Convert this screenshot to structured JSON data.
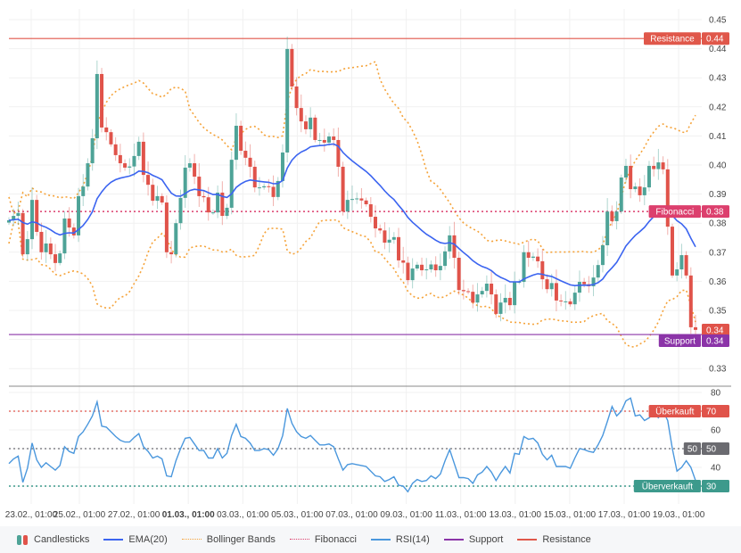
{
  "colors": {
    "up": "#4ea397",
    "down": "#e0534a",
    "ema": "#3b64f0",
    "bollinger": "#f5a33a",
    "fibonacci": "#dc3f6d",
    "rsi": "#4a97dd",
    "support": "#8b34a8",
    "resistance": "#e0574a",
    "overbought": "#e0534a",
    "midline": "#6b6b70",
    "oversold": "#3d9a8c"
  },
  "chart_data": {
    "type": "candlestick",
    "price_axis": {
      "ticks": [
        "0.45",
        "0.44",
        "0.43",
        "0.42",
        "0.41",
        "0.40",
        "0.39",
        "0.38",
        "0.37",
        "0.36",
        "0.35",
        "0.34",
        "0.33"
      ],
      "tick_values": [
        0.45,
        0.44,
        0.43,
        0.42,
        0.41,
        0.4,
        0.39,
        0.38,
        0.37,
        0.36,
        0.35,
        0.34,
        0.33
      ],
      "ylim": [
        0.325,
        0.4535
      ]
    },
    "x_axis": {
      "ticks": [
        "23.02., 01:00",
        "25.02., 01:00",
        "27.02., 01:00",
        "01.03., 01:00",
        "03.03., 01:00",
        "05.03., 01:00",
        "07.03., 01:00",
        "09.03., 01:00",
        "11.03., 01:00",
        "13.03., 01:00",
        "15.03., 01:00",
        "17.03., 01:00",
        "19.03., 01:00"
      ],
      "bold_tick": "01.03., 01:00"
    },
    "closes": [
      0.381,
      0.3825,
      0.3835,
      0.3693,
      0.3745,
      0.388,
      0.377,
      0.37,
      0.373,
      0.3693,
      0.3663,
      0.3696,
      0.3816,
      0.3785,
      0.3758,
      0.3893,
      0.3926,
      0.4006,
      0.4092,
      0.4313,
      0.4129,
      0.4113,
      0.4071,
      0.4034,
      0.4006,
      0.3991,
      0.3995,
      0.4031,
      0.408,
      0.3966,
      0.3932,
      0.3877,
      0.3893,
      0.3871,
      0.37,
      0.3693,
      0.38,
      0.3887,
      0.3991,
      0.4006,
      0.396,
      0.3893,
      0.3889,
      0.3837,
      0.3837,
      0.3905,
      0.3825,
      0.3853,
      0.4018,
      0.4135,
      0.4049,
      0.4025,
      0.3994,
      0.3923,
      0.3923,
      0.3927,
      0.3925,
      0.389,
      0.3945,
      0.4043,
      0.4399,
      0.427,
      0.4196,
      0.415,
      0.4123,
      0.4163,
      0.4086,
      0.4086,
      0.4077,
      0.4098,
      0.4086,
      0.3994,
      0.384,
      0.388,
      0.3883,
      0.3885,
      0.3878,
      0.3865,
      0.3822,
      0.3782,
      0.3775,
      0.3733,
      0.3743,
      0.3752,
      0.3672,
      0.3664,
      0.3604,
      0.3644,
      0.3657,
      0.3638,
      0.3641,
      0.3658,
      0.3638,
      0.3653,
      0.3703,
      0.3758,
      0.3681,
      0.357,
      0.3566,
      0.3564,
      0.3527,
      0.3555,
      0.3567,
      0.3592,
      0.3555,
      0.3488,
      0.3527,
      0.3543,
      0.3518,
      0.3598,
      0.3598,
      0.37,
      0.3681,
      0.3685,
      0.3669,
      0.3607,
      0.3573,
      0.3594,
      0.3534,
      0.3531,
      0.3531,
      0.3521,
      0.3561,
      0.3598,
      0.359,
      0.3583,
      0.3613,
      0.3656,
      0.3724,
      0.384,
      0.3807,
      0.384,
      0.3957,
      0.3997,
      0.3917,
      0.3926,
      0.3896,
      0.3923,
      0.3997,
      0.3986,
      0.4009,
      0.3985,
      0.3788,
      0.362,
      0.3641,
      0.369,
      0.362,
      0.3442,
      0.3433
    ],
    "ema_period": 20,
    "bollinger": {
      "period": 20,
      "stddev": 2
    },
    "levels": {
      "resistance": {
        "label": "Resistance",
        "value": 0.4435,
        "value_label": "0.44"
      },
      "fibonacci": {
        "label": "Fibonacci",
        "value": 0.384,
        "value_label": "0.38"
      },
      "support": {
        "label": "Support",
        "value": 0.3417,
        "value_label": "0.34"
      },
      "last_price": {
        "value": 0.3433,
        "value_label": "0.34"
      }
    },
    "rsi": {
      "period": 14,
      "axis_ticks": [
        "80",
        "70",
        "60",
        "50",
        "40",
        "30"
      ],
      "axis_values": [
        80,
        70,
        60,
        50,
        40,
        30
      ],
      "ylim": [
        22,
        80
      ],
      "values": [
        42,
        44.5,
        46,
        32,
        39.5,
        53,
        44,
        40,
        42.5,
        40.5,
        38.5,
        41,
        51,
        48.5,
        47.5,
        56.5,
        59,
        63,
        67.5,
        75,
        62,
        61.5,
        59,
        56.5,
        54.5,
        53.5,
        53.5,
        56,
        58,
        51,
        48.5,
        45,
        46,
        44.5,
        35.5,
        35,
        43.5,
        50,
        55.5,
        56,
        52.5,
        49,
        49,
        45,
        45,
        50,
        45,
        47.5,
        57,
        63,
        56.5,
        55.5,
        53,
        49,
        49,
        50,
        49.5,
        46.5,
        50,
        57,
        71.5,
        63.5,
        59,
        56.5,
        55.5,
        57,
        54.5,
        52,
        52,
        52.5,
        51,
        44.5,
        38.5,
        41.5,
        42,
        41.5,
        41,
        40.5,
        38,
        35.5,
        35,
        32.5,
        33.5,
        35,
        30.5,
        30,
        27,
        31.5,
        33.5,
        32.5,
        33,
        35.5,
        34,
        36.5,
        43.5,
        49.5,
        42,
        34.5,
        34.5,
        34,
        31.5,
        36,
        37.5,
        40.5,
        37.5,
        33,
        37,
        40.5,
        37,
        47.5,
        47,
        56.5,
        55,
        55.5,
        53,
        47,
        44,
        46.5,
        40.5,
        40.5,
        40.5,
        39.5,
        45,
        50,
        49.5,
        48.5,
        48,
        52,
        57,
        64.5,
        72.5,
        67.5,
        70,
        75.5,
        77,
        67.5,
        68,
        65,
        66.5,
        68.5,
        66.5,
        70,
        65,
        50,
        38,
        40,
        43.5,
        40,
        33
      ],
      "levels": {
        "overbought": {
          "label": "Überkauft",
          "value": 70,
          "value_label": "70"
        },
        "midline": {
          "label": "50",
          "value": 50,
          "value_label": "50"
        },
        "oversold": {
          "label": "Überverkauft",
          "value": 30,
          "value_label": "30"
        }
      }
    }
  },
  "legend": [
    {
      "label": "Candlesticks",
      "icon": "candles"
    },
    {
      "label": "EMA(20)",
      "icon": "solid",
      "color_key": "ema"
    },
    {
      "label": "Bollinger Bands",
      "icon": "dotted",
      "color_key": "bollinger"
    },
    {
      "label": "Fibonacci",
      "icon": "dotted",
      "color_key": "fibonacci"
    },
    {
      "label": "RSI(14)",
      "icon": "solid",
      "color_key": "rsi"
    },
    {
      "label": "Support",
      "icon": "solid",
      "color_key": "support"
    },
    {
      "label": "Resistance",
      "icon": "solid",
      "color_key": "resistance"
    }
  ]
}
